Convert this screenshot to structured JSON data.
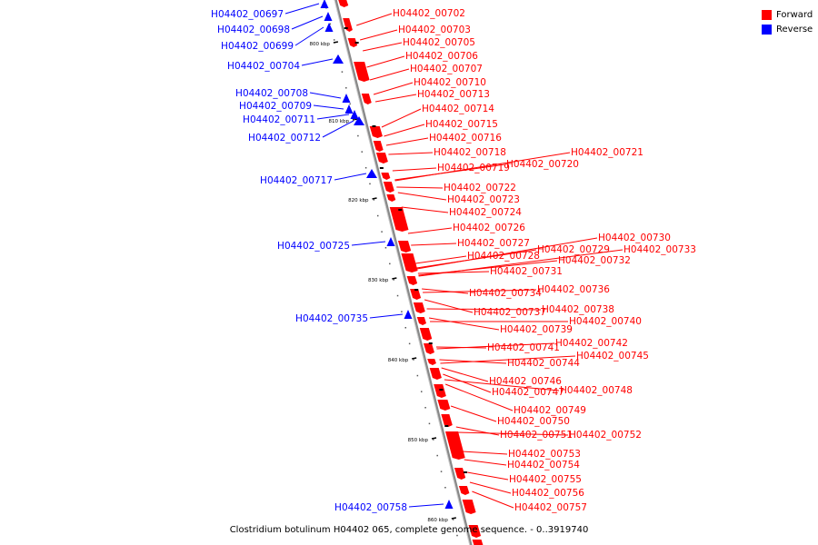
{
  "caption": "Clostridium botulinum H04402 065, complete genome sequence. - 0..3919740",
  "legend": [
    {
      "label": "Forward",
      "color": "#ff0000"
    },
    {
      "label": "Reverse",
      "color": "#0000ff"
    }
  ],
  "colors": {
    "forward": "#ff0000",
    "reverse": "#0000ff",
    "backbone": "#888888"
  },
  "scale_labels": [
    "800 kbp",
    "810 kbp",
    "820 kbp",
    "830 kbp",
    "840 kbp",
    "850 kbp",
    "860 kbp"
  ],
  "reverse_genes": [
    "H04402_00697",
    "H04402_00698",
    "H04402_00699",
    "H04402_00704",
    "H04402_00708",
    "H04402_00709",
    "H04402_00711",
    "H04402_00712",
    "H04402_00717",
    "H04402_00725",
    "H04402_00735",
    "H04402_00758"
  ],
  "forward_genes": [
    "H04402_00702",
    "H04402_00703",
    "H04402_00705",
    "H04402_00706",
    "H04402_00707",
    "H04402_00710",
    "H04402_00713",
    "H04402_00714",
    "H04402_00715",
    "H04402_00716",
    "H04402_00718",
    "H04402_00719",
    "H04402_00720",
    "H04402_00721",
    "H04402_00722",
    "H04402_00723",
    "H04402_00724",
    "H04402_00726",
    "H04402_00727",
    "H04402_00728",
    "H04402_00729",
    "H04402_00730",
    "H04402_00731",
    "H04402_00732",
    "H04402_00733",
    "H04402_00734",
    "H04402_00736",
    "H04402_00737",
    "H04402_00738",
    "H04402_00739",
    "H04402_00740",
    "H04402_00741",
    "H04402_00742",
    "H04402_00744",
    "H04402_00745",
    "H04402_00746",
    "H04402_00747",
    "H04402_00748",
    "H04402_00749",
    "H04402_00750",
    "H04402_00751",
    "H04402_00752",
    "H04402_00753",
    "H04402_00754",
    "H04402_00755",
    "H04402_00756",
    "H04402_00757"
  ]
}
